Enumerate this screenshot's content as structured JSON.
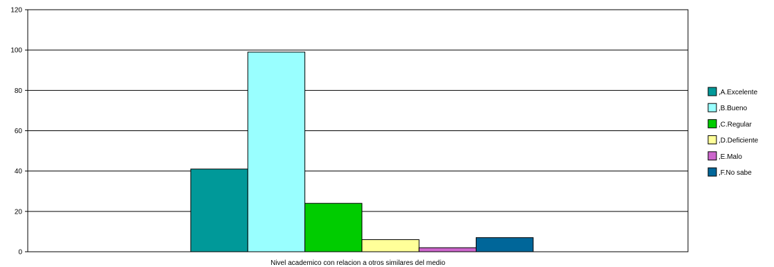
{
  "chart_data": {
    "type": "bar",
    "title": "",
    "xlabel": "Nivel academico con relacion a otros similares del medio",
    "ylabel": "",
    "ylim": [
      0,
      120
    ],
    "yticks": [
      0,
      20,
      40,
      60,
      80,
      100,
      120
    ],
    "grid": true,
    "legend_position": "right",
    "categories": [
      "Nivel academico con relacion a otros similares del medio"
    ],
    "series": [
      {
        "name": ",A.Excelente",
        "values": [
          41
        ],
        "color": "#009999"
      },
      {
        "name": ",B.Bueno",
        "values": [
          99
        ],
        "color": "#99FFFF"
      },
      {
        "name": ",C.Regular",
        "values": [
          24
        ],
        "color": "#00CC00"
      },
      {
        "name": ",D.Deficiente",
        "values": [
          6
        ],
        "color": "#FFFF99"
      },
      {
        "name": ",E.Malo",
        "values": [
          2
        ],
        "color": "#CC66CC"
      },
      {
        "name": ",F.No sabe",
        "values": [
          7
        ],
        "color": "#006699"
      }
    ]
  }
}
